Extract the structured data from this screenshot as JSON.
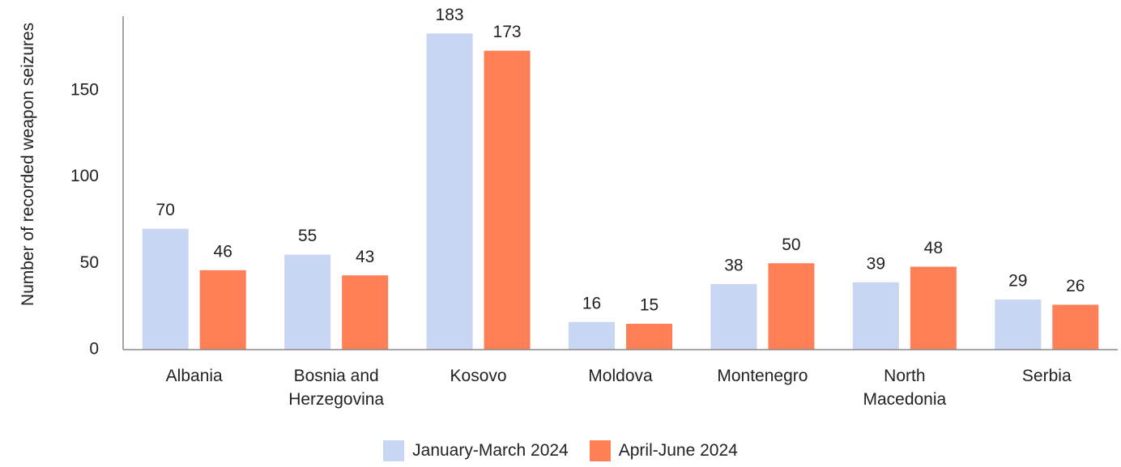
{
  "chart_data": {
    "type": "bar",
    "y_axis_label": "Number of recorded weapon seizures",
    "categories": [
      "Albania",
      "Bosnia and Herzegovina",
      "Kosovo",
      "Moldova",
      "Montenegro",
      "North Macedonia",
      "Serbia"
    ],
    "series": [
      {
        "name": "January-March 2024",
        "color": "#c9d6f3",
        "values": [
          70,
          55,
          183,
          16,
          38,
          39,
          29
        ]
      },
      {
        "name": "April-June 2024",
        "color": "#ff7f57",
        "values": [
          46,
          43,
          173,
          15,
          50,
          48,
          26
        ]
      }
    ],
    "ylim": [
      0,
      193
    ],
    "yticks": [
      0,
      50,
      100,
      150
    ],
    "grid": false,
    "legend": "bottom"
  }
}
